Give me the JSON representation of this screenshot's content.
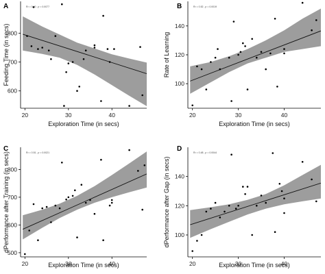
{
  "chart_data": [
    {
      "type": "scatter",
      "panel_label": "A",
      "stat_text": "R² = 0.40 , p = 0.0077",
      "xlabel": "Exploration Time (in secs)",
      "ylabel": "Feeding Time (in secs)",
      "xlim": [
        19,
        48
      ],
      "ylim": [
        540,
        910
      ],
      "xticks": [
        20,
        30,
        40
      ],
      "yticks": [
        600,
        700,
        800
      ],
      "grid": false,
      "points": [
        {
          "x": 20.5,
          "y": 790
        },
        {
          "x": 21.5,
          "y": 755
        },
        {
          "x": 22.0,
          "y": 890
        },
        {
          "x": 23.0,
          "y": 745
        },
        {
          "x": 24.0,
          "y": 750
        },
        {
          "x": 25.5,
          "y": 740
        },
        {
          "x": 26.0,
          "y": 710
        },
        {
          "x": 27.0,
          "y": 790
        },
        {
          "x": 28.5,
          "y": 900
        },
        {
          "x": 29.0,
          "y": 548
        },
        {
          "x": 29.5,
          "y": 665
        },
        {
          "x": 30.0,
          "y": 695
        },
        {
          "x": 31.0,
          "y": 700
        },
        {
          "x": 32.0,
          "y": 600
        },
        {
          "x": 32.5,
          "y": 615
        },
        {
          "x": 33.5,
          "y": 710
        },
        {
          "x": 34.0,
          "y": 740
        },
        {
          "x": 36.0,
          "y": 750
        },
        {
          "x": 36.0,
          "y": 758
        },
        {
          "x": 37.5,
          "y": 565
        },
        {
          "x": 38.0,
          "y": 860
        },
        {
          "x": 39.0,
          "y": 745
        },
        {
          "x": 39.5,
          "y": 700
        },
        {
          "x": 40.5,
          "y": 745
        },
        {
          "x": 44.0,
          "y": 548
        },
        {
          "x": 46.5,
          "y": 752
        },
        {
          "x": 47.0,
          "y": 585
        }
      ],
      "fit": {
        "slope": -4.8,
        "intercept": 890.0
      },
      "band": {
        "x": [
          19.5,
          24,
          28,
          32,
          36,
          40,
          44,
          48
        ],
        "lower": [
          740,
          728,
          715,
          690,
          657,
          620,
          583,
          547
        ],
        "upper": [
          858,
          823,
          795,
          767,
          747,
          727,
          712,
          698
        ]
      }
    },
    {
      "type": "scatter",
      "panel_label": "B",
      "stat_text": "R² = 0.52 , p = 0.0019",
      "xlabel": "Exploration Time (in secs)",
      "ylabel": "Rate of Learning",
      "xlim": [
        19,
        48
      ],
      "ylim": [
        83,
        157
      ],
      "xticks": [
        20,
        30,
        40
      ],
      "yticks": [
        100,
        120,
        140
      ],
      "grid": false,
      "points": [
        {
          "x": 20.0,
          "y": 85
        },
        {
          "x": 21.0,
          "y": 112
        },
        {
          "x": 22.0,
          "y": 110
        },
        {
          "x": 23.0,
          "y": 96
        },
        {
          "x": 24.0,
          "y": 115
        },
        {
          "x": 25.0,
          "y": 118
        },
        {
          "x": 25.5,
          "y": 124
        },
        {
          "x": 26.0,
          "y": 110
        },
        {
          "x": 28.0,
          "y": 118
        },
        {
          "x": 28.5,
          "y": 88
        },
        {
          "x": 29.0,
          "y": 143
        },
        {
          "x": 30.0,
          "y": 120
        },
        {
          "x": 30.5,
          "y": 122
        },
        {
          "x": 31.0,
          "y": 128
        },
        {
          "x": 31.5,
          "y": 126
        },
        {
          "x": 32.0,
          "y": 96
        },
        {
          "x": 33.0,
          "y": 131
        },
        {
          "x": 34.0,
          "y": 118
        },
        {
          "x": 35.0,
          "y": 122
        },
        {
          "x": 36.0,
          "y": 110
        },
        {
          "x": 37.0,
          "y": 121
        },
        {
          "x": 38.0,
          "y": 145
        },
        {
          "x": 38.5,
          "y": 98
        },
        {
          "x": 40.0,
          "y": 121
        },
        {
          "x": 40.0,
          "y": 124
        },
        {
          "x": 44.0,
          "y": 156
        },
        {
          "x": 46.0,
          "y": 137
        },
        {
          "x": 47.0,
          "y": 144
        }
      ],
      "fit": {
        "slope": 1.22,
        "intercept": 78.0
      },
      "band": {
        "x": [
          19.5,
          24,
          28,
          32,
          36,
          40,
          44,
          48
        ],
        "lower": [
          93,
          101,
          108,
          114,
          118,
          122,
          124,
          126
        ],
        "upper": [
          112,
          115,
          119,
          124,
          130,
          137,
          145,
          152
        ]
      }
    },
    {
      "type": "scatter",
      "panel_label": "C",
      "stat_text": "R² = 0.51 , p = 0.0021",
      "xlabel": "Exploration Time (in secs)",
      "ylabel": "dPerformance after Training (in secs)",
      "xlim": [
        19,
        48
      ],
      "ylim": [
        485,
        880
      ],
      "xticks": [
        20,
        30,
        40
      ],
      "yticks": [
        500,
        600,
        700,
        800
      ],
      "grid": false,
      "points": [
        {
          "x": 20.0,
          "y": 495
        },
        {
          "x": 21.0,
          "y": 580
        },
        {
          "x": 22.0,
          "y": 675
        },
        {
          "x": 23.0,
          "y": 545
        },
        {
          "x": 24.0,
          "y": 660
        },
        {
          "x": 25.0,
          "y": 665
        },
        {
          "x": 26.0,
          "y": 610
        },
        {
          "x": 27.0,
          "y": 670
        },
        {
          "x": 28.0,
          "y": 660
        },
        {
          "x": 28.5,
          "y": 825
        },
        {
          "x": 29.5,
          "y": 692
        },
        {
          "x": 30.0,
          "y": 700
        },
        {
          "x": 31.0,
          "y": 705
        },
        {
          "x": 31.5,
          "y": 725
        },
        {
          "x": 32.0,
          "y": 555
        },
        {
          "x": 33.0,
          "y": 745
        },
        {
          "x": 34.0,
          "y": 680
        },
        {
          "x": 35.0,
          "y": 690
        },
        {
          "x": 36.0,
          "y": 640
        },
        {
          "x": 37.5,
          "y": 835
        },
        {
          "x": 38.0,
          "y": 545
        },
        {
          "x": 39.5,
          "y": 670
        },
        {
          "x": 40.0,
          "y": 680
        },
        {
          "x": 40.0,
          "y": 690
        },
        {
          "x": 44.0,
          "y": 870
        },
        {
          "x": 46.0,
          "y": 795
        },
        {
          "x": 47.0,
          "y": 655
        },
        {
          "x": 47.5,
          "y": 815
        }
      ],
      "fit": {
        "slope": 7.0,
        "intercept": 448.0
      },
      "band": {
        "x": [
          19.5,
          24,
          28,
          32,
          36,
          40,
          44,
          48
        ],
        "lower": [
          548,
          590,
          625,
          655,
          680,
          700,
          718,
          735
        ],
        "upper": [
          635,
          655,
          677,
          705,
          740,
          780,
          822,
          865
        ]
      }
    },
    {
      "type": "scatter",
      "panel_label": "D",
      "stat_text": "R² = 0.48 , p = 0.0044",
      "xlabel": "Exploration Time (in secs)",
      "ylabel": "dPerformance after Gap (in secs)",
      "xlim": [
        19,
        48
      ],
      "ylim": [
        85,
        160
      ],
      "xticks": [
        20,
        30,
        40
      ],
      "yticks": [
        100,
        120,
        140
      ],
      "grid": false,
      "points": [
        {
          "x": 20.0,
          "y": 89
        },
        {
          "x": 21.0,
          "y": 96
        },
        {
          "x": 22.0,
          "y": 100
        },
        {
          "x": 23.0,
          "y": 116
        },
        {
          "x": 24.0,
          "y": 118
        },
        {
          "x": 25.0,
          "y": 122
        },
        {
          "x": 26.0,
          "y": 112
        },
        {
          "x": 27.0,
          "y": 116
        },
        {
          "x": 28.0,
          "y": 120
        },
        {
          "x": 28.5,
          "y": 155
        },
        {
          "x": 29.5,
          "y": 118
        },
        {
          "x": 30.0,
          "y": 120
        },
        {
          "x": 31.0,
          "y": 133
        },
        {
          "x": 31.5,
          "y": 128
        },
        {
          "x": 32.0,
          "y": 133
        },
        {
          "x": 33.0,
          "y": 100
        },
        {
          "x": 34.0,
          "y": 120
        },
        {
          "x": 35.0,
          "y": 127
        },
        {
          "x": 36.0,
          "y": 122
        },
        {
          "x": 37.5,
          "y": 156
        },
        {
          "x": 38.0,
          "y": 102
        },
        {
          "x": 39.0,
          "y": 135
        },
        {
          "x": 39.5,
          "y": 130
        },
        {
          "x": 40.0,
          "y": 125
        },
        {
          "x": 40.0,
          "y": 115
        },
        {
          "x": 44.0,
          "y": 150
        },
        {
          "x": 46.0,
          "y": 138
        },
        {
          "x": 47.0,
          "y": 123
        }
      ],
      "fit": {
        "slope": 1.0,
        "intercept": 87.5
      },
      "band": {
        "x": [
          19.5,
          24,
          28,
          32,
          36,
          40,
          44,
          48
        ],
        "lower": [
          98,
          104,
          109,
          114,
          118,
          121,
          123,
          125
        ],
        "upper": [
          117,
          119,
          121,
          124,
          128,
          134,
          141,
          148
        ]
      }
    }
  ]
}
